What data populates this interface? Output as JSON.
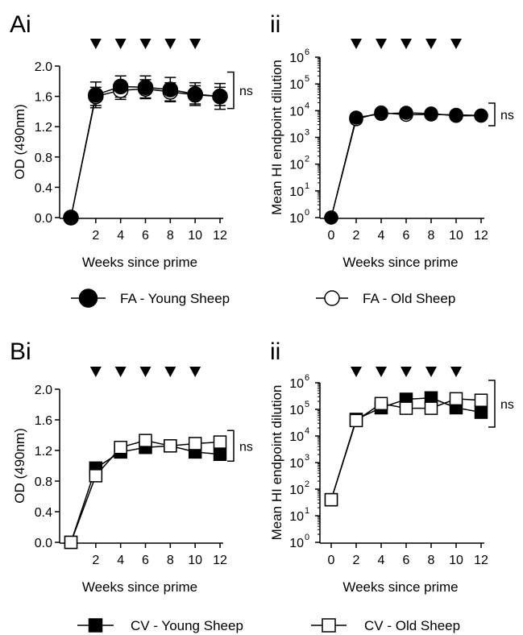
{
  "legends": [
    [
      {
        "label": "FA - Young Sheep",
        "marker": "circle",
        "fill": "#000000"
      },
      {
        "label": "FA - Old Sheep",
        "marker": "circle",
        "fill": "#ffffff"
      }
    ],
    [
      {
        "label": "CV - Young Sheep",
        "marker": "square",
        "fill": "#000000"
      },
      {
        "label": "CV -  Old Sheep",
        "marker": "square",
        "fill": "#ffffff"
      }
    ]
  ],
  "chart_data": [
    {
      "panel": "Ai",
      "type": "line",
      "scale": "linear",
      "xlabel": "Weeks since prime",
      "ylabel": "OD (490nm)",
      "xticks": [
        2,
        4,
        6,
        8,
        10,
        12
      ],
      "xlim": [
        0,
        12
      ],
      "yticks": [
        "0.0",
        "0.4",
        "0.8",
        "1.2",
        "1.6",
        "2.0"
      ],
      "ylim": [
        0,
        2.0
      ],
      "boost_weeks": [
        2,
        4,
        6,
        8,
        10
      ],
      "annotation": "ns",
      "series": [
        {
          "name": "FA - Young Sheep",
          "marker": "circle",
          "filled": true,
          "x": [
            0,
            2,
            4,
            6,
            8,
            10,
            12
          ],
          "y": [
            0.0,
            1.62,
            1.73,
            1.72,
            1.69,
            1.63,
            1.6
          ],
          "err": [
            0,
            0.17,
            0.14,
            0.15,
            0.16,
            0.15,
            0.17
          ]
        },
        {
          "name": "FA - Old Sheep",
          "marker": "circle",
          "filled": false,
          "x": [
            0,
            2,
            4,
            6,
            8,
            10,
            12
          ],
          "y": [
            0.0,
            1.6,
            1.68,
            1.7,
            1.66,
            1.62,
            1.6
          ],
          "err": [
            0,
            0.12,
            0.12,
            0.12,
            0.12,
            0.12,
            0.12
          ]
        }
      ]
    },
    {
      "panel": "ii",
      "type": "line",
      "scale": "log",
      "xlabel": "Weeks since prime",
      "ylabel": "Mean HI endpoint dilution",
      "xticks": [
        0,
        2,
        4,
        6,
        8,
        10,
        12
      ],
      "xlim": [
        0,
        12
      ],
      "yticks": [
        "10",
        "10",
        "10",
        "10",
        "10",
        "10",
        "10"
      ],
      "ytick_exponents": [
        "0",
        "1",
        "2",
        "3",
        "4",
        "5",
        "6"
      ],
      "ylim": [
        1,
        1000000
      ],
      "boost_weeks": [
        2,
        4,
        6,
        8,
        10
      ],
      "annotation": "ns",
      "series": [
        {
          "name": "FA - Young Sheep",
          "marker": "circle",
          "filled": true,
          "x": [
            0,
            2,
            4,
            6,
            8,
            10,
            12
          ],
          "y": [
            1,
            5500,
            7600,
            8300,
            7800,
            6400,
            6500
          ]
        },
        {
          "name": "FA - Old Sheep",
          "marker": "circle",
          "filled": false,
          "x": [
            0,
            2,
            4,
            6,
            8,
            10,
            12
          ],
          "y": [
            1,
            4800,
            8500,
            7000,
            7200,
            7000,
            6600
          ]
        }
      ]
    },
    {
      "panel": "Bi",
      "type": "line",
      "scale": "linear",
      "xlabel": "Weeks since prime",
      "ylabel": "OD (490nm)",
      "xticks": [
        2,
        4,
        6,
        8,
        10,
        12
      ],
      "xlim": [
        0,
        12
      ],
      "yticks": [
        "0.0",
        "0.4",
        "0.8",
        "1.2",
        "1.6",
        "2.0"
      ],
      "ylim": [
        0,
        2.0
      ],
      "boost_weeks": [
        2,
        4,
        6,
        8,
        10
      ],
      "annotation": "ns",
      "series": [
        {
          "name": "CV - Young Sheep",
          "marker": "square",
          "filled": true,
          "x": [
            0,
            2,
            4,
            6,
            8,
            10,
            12
          ],
          "y": [
            0.0,
            0.97,
            1.18,
            1.24,
            1.26,
            1.18,
            1.15
          ]
        },
        {
          "name": "CV -  Old Sheep",
          "marker": "square",
          "filled": false,
          "x": [
            0,
            2,
            4,
            6,
            8,
            10,
            12
          ],
          "y": [
            0.0,
            0.87,
            1.24,
            1.33,
            1.26,
            1.29,
            1.31
          ]
        }
      ]
    },
    {
      "panel": "ii",
      "type": "line",
      "scale": "log",
      "xlabel": "Weeks since prime",
      "ylabel": "Mean HI endpoint dilution",
      "xticks": [
        0,
        2,
        4,
        6,
        8,
        10,
        12
      ],
      "xlim": [
        0,
        12
      ],
      "yticks": [
        "10",
        "10",
        "10",
        "10",
        "10",
        "10",
        "10"
      ],
      "ytick_exponents": [
        "0",
        "1",
        "2",
        "3",
        "4",
        "5",
        "6"
      ],
      "ylim": [
        1,
        1000000
      ],
      "boost_weeks": [
        2,
        4,
        6,
        8,
        10
      ],
      "annotation": "ns",
      "series": [
        {
          "name": "CV - Young Sheep",
          "marker": "square",
          "filled": true,
          "x": [
            0,
            2,
            4,
            6,
            8,
            10,
            12
          ],
          "y": [
            40,
            42000,
            115000,
            240000,
            270000,
            115000,
            78000
          ]
        },
        {
          "name": "CV -  Old Sheep",
          "marker": "square",
          "filled": false,
          "x": [
            0,
            2,
            4,
            6,
            8,
            10,
            12
          ],
          "y": [
            40,
            38000,
            165000,
            110000,
            110000,
            250000,
            220000
          ]
        }
      ]
    }
  ]
}
